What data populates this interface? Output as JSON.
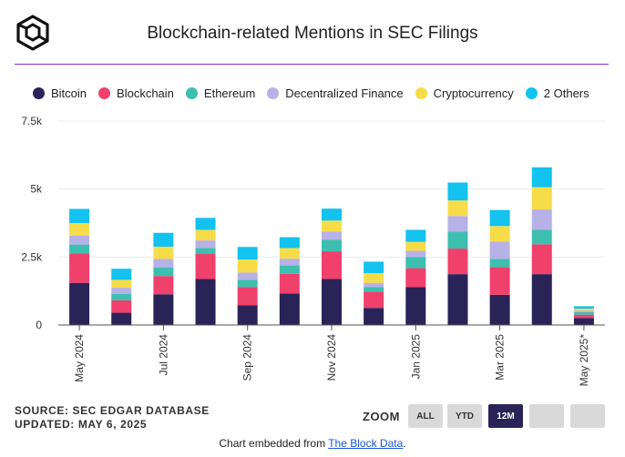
{
  "header": {
    "title": "Blockchain-related Mentions in SEC Filings"
  },
  "chart_data": {
    "type": "bar",
    "stacked": true,
    "title": "Blockchain-related Mentions in SEC Filings",
    "categories": [
      "May 2024",
      "Jun 2024",
      "Jul 2024",
      "Aug 2024",
      "Sep 2024",
      "Oct 2024",
      "Nov 2024",
      "Dec 2024",
      "Jan 2025",
      "Feb 2025",
      "Mar 2025",
      "Apr 2025",
      "May 2025*"
    ],
    "tick_labels": [
      "May 2024",
      "",
      "Jul 2024",
      "",
      "Sep 2024",
      "",
      "Nov 2024",
      "",
      "Jan 2025",
      "",
      "Mar 2025",
      "",
      "May 2025*"
    ],
    "y_ticks": [
      0,
      2500,
      5000,
      7500
    ],
    "y_tick_labels": [
      "0",
      "2.5k",
      "5k",
      "7.5k"
    ],
    "ylim": [
      0,
      7500
    ],
    "series": [
      {
        "name": "Bitcoin",
        "color": "#2a2358",
        "values": [
          1550,
          450,
          1130,
          1690,
          730,
          1160,
          1690,
          630,
          1390,
          1870,
          1110,
          1870,
          260
        ]
      },
      {
        "name": "Blockchain",
        "color": "#f0406c",
        "values": [
          1080,
          460,
          670,
          920,
          670,
          720,
          1020,
          600,
          700,
          940,
          1020,
          1100,
          120
        ]
      },
      {
        "name": "Ethereum",
        "color": "#3dbfb0",
        "values": [
          330,
          230,
          320,
          220,
          260,
          310,
          430,
          160,
          410,
          630,
          300,
          530,
          90
        ]
      },
      {
        "name": "Decentralized Finance",
        "color": "#b7b1e8",
        "values": [
          330,
          230,
          310,
          280,
          270,
          250,
          300,
          160,
          230,
          570,
          640,
          750,
          60
        ]
      },
      {
        "name": "Cryptocurrency",
        "color": "#f7dc4a",
        "values": [
          460,
          290,
          450,
          390,
          480,
          390,
          400,
          360,
          330,
          570,
          570,
          820,
          70
        ]
      },
      {
        "name": "2 Others",
        "color": "#13c2ee",
        "values": [
          520,
          410,
          510,
          440,
          460,
          400,
          440,
          420,
          440,
          660,
          590,
          730,
          90
        ]
      }
    ]
  },
  "source": {
    "line1": "SOURCE: SEC EDGAR DATABASE",
    "line2": "UPDATED: MAY 6, 2025"
  },
  "zoom": {
    "label": "ZOOM",
    "buttons": [
      "ALL",
      "YTD",
      "12M",
      "",
      ""
    ],
    "active": "12M"
  },
  "embed": {
    "prefix": "Chart embedded from ",
    "link": "The Block Data",
    "suffix": "."
  }
}
